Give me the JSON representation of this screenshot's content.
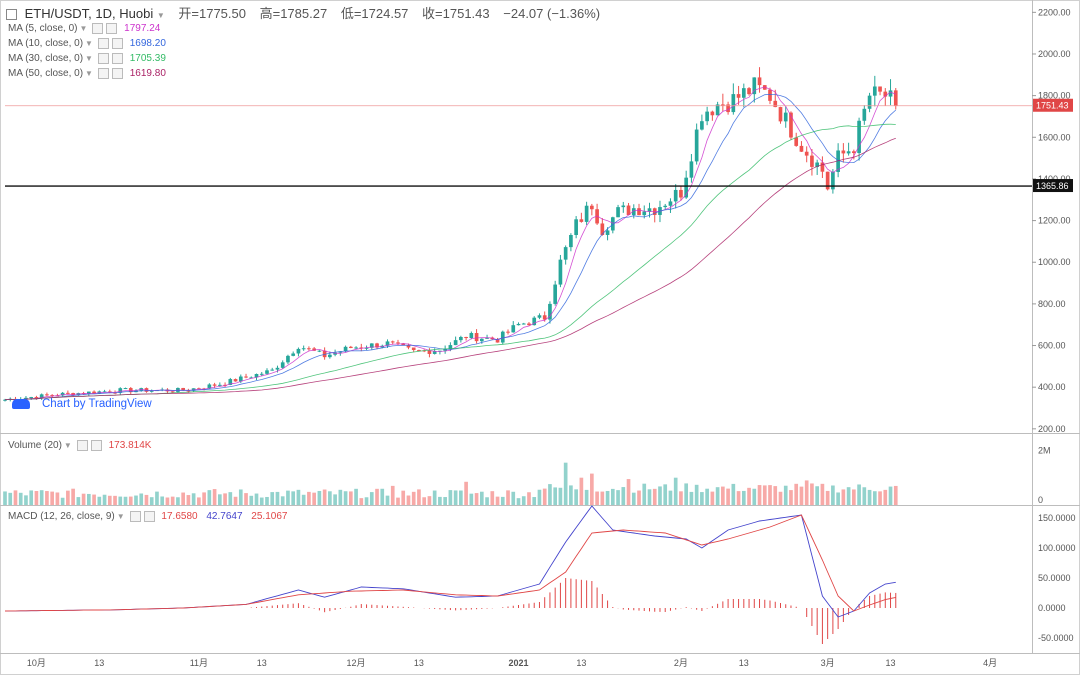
{
  "header": {
    "symbol": "ETH/USDT, 1D, Huobi",
    "open": "开=1775.50",
    "high": "高=1785.27",
    "low": "低=1724.57",
    "close": "收=1751.43",
    "change": "−24.07 (−1.36%)"
  },
  "indicators": [
    {
      "label": "MA (5, close, 0)",
      "value": "1797.24",
      "color": "#cc33cc"
    },
    {
      "label": "MA (10, close, 0)",
      "value": "1698.20",
      "color": "#3366dd"
    },
    {
      "label": "MA (30, close, 0)",
      "value": "1705.39",
      "color": "#33bb66"
    },
    {
      "label": "MA (50, close, 0)",
      "value": "1619.80",
      "color": "#aa2266"
    }
  ],
  "volume_legend": {
    "label": "Volume (20)",
    "value": "173.814K"
  },
  "macd_legend": {
    "label": "MACD (12, 26, close, 9)",
    "v1": "17.6580",
    "v2": "42.7647",
    "v3": "25.1067"
  },
  "watermark": "Chart by TradingView",
  "colors": {
    "up": "#26a69a",
    "down": "#ef5350",
    "ma5": "#cc33cc",
    "ma10": "#3366dd",
    "ma30": "#33bb66",
    "ma50": "#aa2266",
    "macd": "#4444cc",
    "signal": "#e04646"
  },
  "chart_data": {
    "type": "candlestick",
    "title": "ETH/USDT, 1D, Huobi",
    "ylim": [
      180,
      2240
    ],
    "price_ticks": [
      "2200.00",
      "2000.00",
      "1800.00",
      "1600.00",
      "1400.00",
      "1200.00",
      "1000.00",
      "800.00",
      "600.00",
      "400.00",
      "200.00"
    ],
    "price_tick_values": [
      2200,
      2000,
      1800,
      1600,
      1400,
      1200,
      1000,
      800,
      600,
      400,
      200
    ],
    "current_price_label": "1751.43",
    "current_price": 1751.43,
    "horizontal_line_label": "1365.86",
    "horizontal_line": 1365.86,
    "x_ticks": [
      "10月",
      "13",
      "11月",
      "13",
      "12月",
      "13",
      "2021",
      "13",
      "2月",
      "13",
      "3月",
      "13",
      "4月"
    ],
    "x_tick_days": [
      0,
      12,
      31,
      43,
      61,
      73,
      92,
      104,
      123,
      135,
      151,
      163,
      182
    ],
    "x_start_day": -6,
    "x_end_day": 190,
    "last_day": 164,
    "price_path": [
      [
        -6,
        340
      ],
      [
        4,
        365
      ],
      [
        16,
        385
      ],
      [
        28,
        385
      ],
      [
        35,
        415
      ],
      [
        45,
        480
      ],
      [
        50,
        600
      ],
      [
        55,
        550
      ],
      [
        60,
        590
      ],
      [
        67,
        610
      ],
      [
        72,
        570
      ],
      [
        77,
        580
      ],
      [
        82,
        645
      ],
      [
        88,
        630
      ],
      [
        92,
        700
      ],
      [
        97,
        735
      ],
      [
        100,
        1000
      ],
      [
        103,
        1180
      ],
      [
        106,
        1280
      ],
      [
        108,
        1160
      ],
      [
        111,
        1240
      ],
      [
        114,
        1260
      ],
      [
        118,
        1260
      ],
      [
        123,
        1340
      ],
      [
        127,
        1720
      ],
      [
        130,
        1760
      ],
      [
        133,
        1780
      ],
      [
        137,
        1840
      ],
      [
        140,
        1800
      ],
      [
        146,
        1560
      ],
      [
        150,
        1440
      ],
      [
        151,
        1360
      ],
      [
        153,
        1500
      ],
      [
        156,
        1560
      ],
      [
        159,
        1800
      ],
      [
        162,
        1800
      ],
      [
        164,
        1751
      ]
    ],
    "volume_ticks": [
      "2M",
      "0"
    ],
    "volume_tick_values": [
      2000000,
      0
    ],
    "volume_max": 2600000,
    "volume_spikes": [
      [
        101,
        1550000
      ],
      [
        104,
        1000000
      ],
      [
        106,
        1150000
      ],
      [
        113,
        950000
      ],
      [
        147,
        900000
      ],
      [
        122,
        1000000
      ],
      [
        82,
        850000
      ],
      [
        68,
        700000
      ]
    ],
    "macd_ticks": [
      "150.0000",
      "100.0000",
      "50.0000",
      "0.0000",
      "-50.0000"
    ],
    "macd_tick_values": [
      150,
      100,
      50,
      0,
      -50
    ],
    "macd_range": [
      -75,
      170
    ],
    "macd_path": [
      [
        -6,
        -5
      ],
      [
        15,
        -3
      ],
      [
        28,
        0
      ],
      [
        40,
        6
      ],
      [
        50,
        30
      ],
      [
        55,
        18
      ],
      [
        62,
        35
      ],
      [
        70,
        32
      ],
      [
        80,
        18
      ],
      [
        88,
        20
      ],
      [
        96,
        40
      ],
      [
        101,
        110
      ],
      [
        106,
        170
      ],
      [
        110,
        130
      ],
      [
        118,
        120
      ],
      [
        124,
        115
      ],
      [
        127,
        100
      ],
      [
        132,
        130
      ],
      [
        138,
        145
      ],
      [
        146,
        155
      ],
      [
        150,
        20
      ],
      [
        153,
        -15
      ],
      [
        156,
        -5
      ],
      [
        159,
        25
      ],
      [
        162,
        40
      ],
      [
        164,
        42.76
      ]
    ],
    "signal_path": [
      [
        -6,
        -5
      ],
      [
        15,
        -3
      ],
      [
        28,
        0
      ],
      [
        40,
        6
      ],
      [
        50,
        22
      ],
      [
        60,
        28
      ],
      [
        70,
        30
      ],
      [
        80,
        22
      ],
      [
        88,
        20
      ],
      [
        96,
        30
      ],
      [
        101,
        60
      ],
      [
        106,
        125
      ],
      [
        112,
        130
      ],
      [
        120,
        125
      ],
      [
        127,
        105
      ],
      [
        132,
        115
      ],
      [
        140,
        135
      ],
      [
        146,
        155
      ],
      [
        150,
        80
      ],
      [
        153,
        20
      ],
      [
        156,
        -5
      ],
      [
        159,
        5
      ],
      [
        162,
        14
      ],
      [
        164,
        17.66
      ]
    ],
    "series": [
      {
        "name": "MA (5, close, 0)",
        "last": 1797.24
      },
      {
        "name": "MA (10, close, 0)",
        "last": 1698.2
      },
      {
        "name": "MA (30, close, 0)",
        "last": 1705.39
      },
      {
        "name": "MA (50, close, 0)",
        "last": 1619.8
      },
      {
        "name": "MACD",
        "last": 42.7647
      },
      {
        "name": "Signal",
        "last": 17.658
      },
      {
        "name": "Histogram",
        "last": 25.1067
      }
    ]
  }
}
